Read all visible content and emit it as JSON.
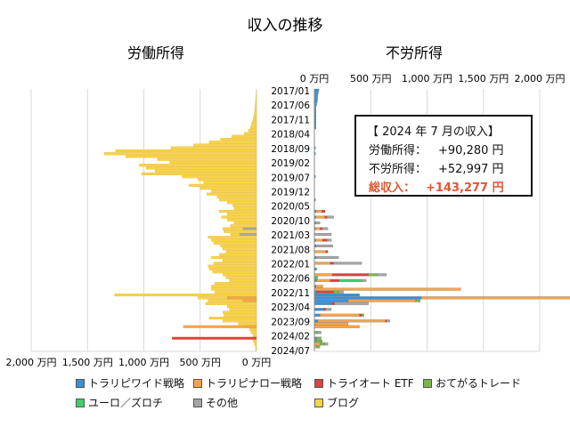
{
  "colors": {
    "wide": "#3b8fd6",
    "narrow": "#f5a34a",
    "trio": "#d94343",
    "otegaru": "#7ab648",
    "euro": "#3fce6a",
    "other": "#a5a5a5",
    "blog": "#f9d247",
    "total_highlight": "#e8532c"
  },
  "chart_data": {
    "type": "bar",
    "orientation": "horizontal-butterfly",
    "title": "収入の推移",
    "left_title": "労働所得",
    "right_title": "不労所得",
    "categories_labels": [
      "2017/01",
      "2017/06",
      "2017/11",
      "2018/04",
      "2018/09",
      "2019/02",
      "2019/07",
      "2019/12",
      "2020/05",
      "2020/10",
      "2021/03",
      "2021/08",
      "2022/01",
      "2022/06",
      "2022/11",
      "2023/04",
      "2023/09",
      "2024/02",
      "2024/07"
    ],
    "left_axis": {
      "ticks": [
        "2,000 万円",
        "1,500 万円",
        "1,000 万円",
        "500 万円",
        "0 万円"
      ],
      "range": [
        0,
        2000
      ]
    },
    "right_axis": {
      "ticks": [
        "0 万円",
        "500 万円",
        "1,000 万円",
        "1,500 万円",
        "2,000 万円"
      ],
      "range": [
        0,
        2000
      ]
    },
    "months": 91,
    "left_series": [
      {
        "name": "ブログ",
        "color": "blog",
        "values": [
          1,
          3,
          5,
          8,
          10,
          12,
          14,
          17,
          18,
          25,
          30,
          40,
          46,
          55,
          70,
          110,
          220,
          320,
          420,
          560,
          760,
          1250,
          1350,
          1160,
          880,
          770,
          1040,
          980,
          900,
          1020,
          660,
          520,
          470,
          600,
          500,
          400,
          440,
          350,
          330,
          260,
          210,
          200,
          330,
          260,
          310,
          260,
          200,
          230,
          300,
          290,
          230,
          430,
          400,
          380,
          320,
          300,
          270,
          330,
          400,
          300,
          380,
          430,
          420,
          390,
          300,
          270,
          240,
          370,
          400,
          400,
          370,
          1260,
          520,
          430,
          450,
          260,
          240,
          300,
          290,
          420,
          300,
          160,
          100,
          60,
          50,
          30,
          40,
          30,
          20,
          10,
          8
        ]
      },
      {
        "name": "トラリピナロー戦略",
        "color": "narrow",
        "values": {
          "72": 260,
          "73": 120,
          "82": 650
        }
      },
      {
        "name": "トライオート ETF",
        "color": "trio",
        "values": {
          "86": 750
        }
      },
      {
        "name": "その他",
        "color": "other",
        "values": {
          "48": 120,
          "50": 150
        }
      }
    ],
    "right_series": [
      {
        "name": "トラリピワイド戦略",
        "color": "wide",
        "stack": {
          "0": 40,
          "1": 35,
          "2": 30,
          "3": 30,
          "4": 25,
          "5": 20,
          "6": 15,
          "7": 15,
          "8": 15,
          "9": 15,
          "10": 15,
          "11": 15,
          "12": 15,
          "13": 15,
          "20": 10,
          "22": 10,
          "30": 10,
          "38": 10,
          "42": 15,
          "44": 12,
          "46": 10,
          "48": 10,
          "52": 12,
          "54": 15,
          "58": 15,
          "62": 20,
          "66": 20,
          "68": 15,
          "70": 20,
          "71": 400,
          "72": 950,
          "73": 300,
          "74": 150,
          "76": 80,
          "78": 50,
          "80": 30,
          "86": 20,
          "87": 10
        }
      },
      {
        "name": "トラリピナロー戦略",
        "color": "narrow",
        "stack": {
          "42": 50,
          "44": 80,
          "48": 40,
          "52": 60,
          "56": 100,
          "60": 140,
          "64": 160,
          "66": 120,
          "68": 60,
          "69": 1300,
          "72": 1350,
          "73": 600,
          "78": 350,
          "80": 600,
          "81": 300,
          "82": 400,
          "88": 50,
          "89": 20
        }
      },
      {
        "name": "トライオート ETF",
        "color": "trio",
        "stack": {
          "42": 30,
          "44": 20,
          "48": 20,
          "52": 40,
          "56": 20,
          "60": 30,
          "64": 320,
          "66": 80,
          "70": 150,
          "72": 10,
          "74": 30,
          "76": 20,
          "78": 20,
          "80": 10
        }
      },
      {
        "name": "おてがるトレード",
        "color": "otegaru",
        "stack": {
          "64": 80,
          "70": 50,
          "73": 40,
          "78": 20,
          "84": 30,
          "86": 40,
          "87": 60,
          "88": 40,
          "89": 30
        }
      },
      {
        "name": "ユーロ／ズロチ",
        "color": "euro",
        "stack": {
          "65": 30,
          "66": 200
        }
      },
      {
        "name": "その他",
        "color": "other",
        "stack": {
          "44": 60,
          "46": 40,
          "48": 50,
          "50": 150,
          "52": 40,
          "54": 150,
          "58": 200,
          "60": 250,
          "64": 80,
          "66": 40,
          "70": 40,
          "74": 300,
          "76": 50,
          "80": 30,
          "84": 30,
          "88": 30
        }
      }
    ],
    "legend": [
      "トラリピワイド戦略",
      "トラリピナロー戦略",
      "トライオート ETF",
      "おてがるトレード",
      "ユーロ／ズロチ",
      "その他",
      "ブログ"
    ]
  },
  "info_box": {
    "heading": "【 2024 年 7 月の収入】",
    "labor_label": "労働所得：",
    "labor_value": "+90,280 円",
    "passive_label": "不労所得：",
    "passive_value": "+52,997 円",
    "total_label": "総収入：",
    "total_value": "+143,277 円"
  }
}
